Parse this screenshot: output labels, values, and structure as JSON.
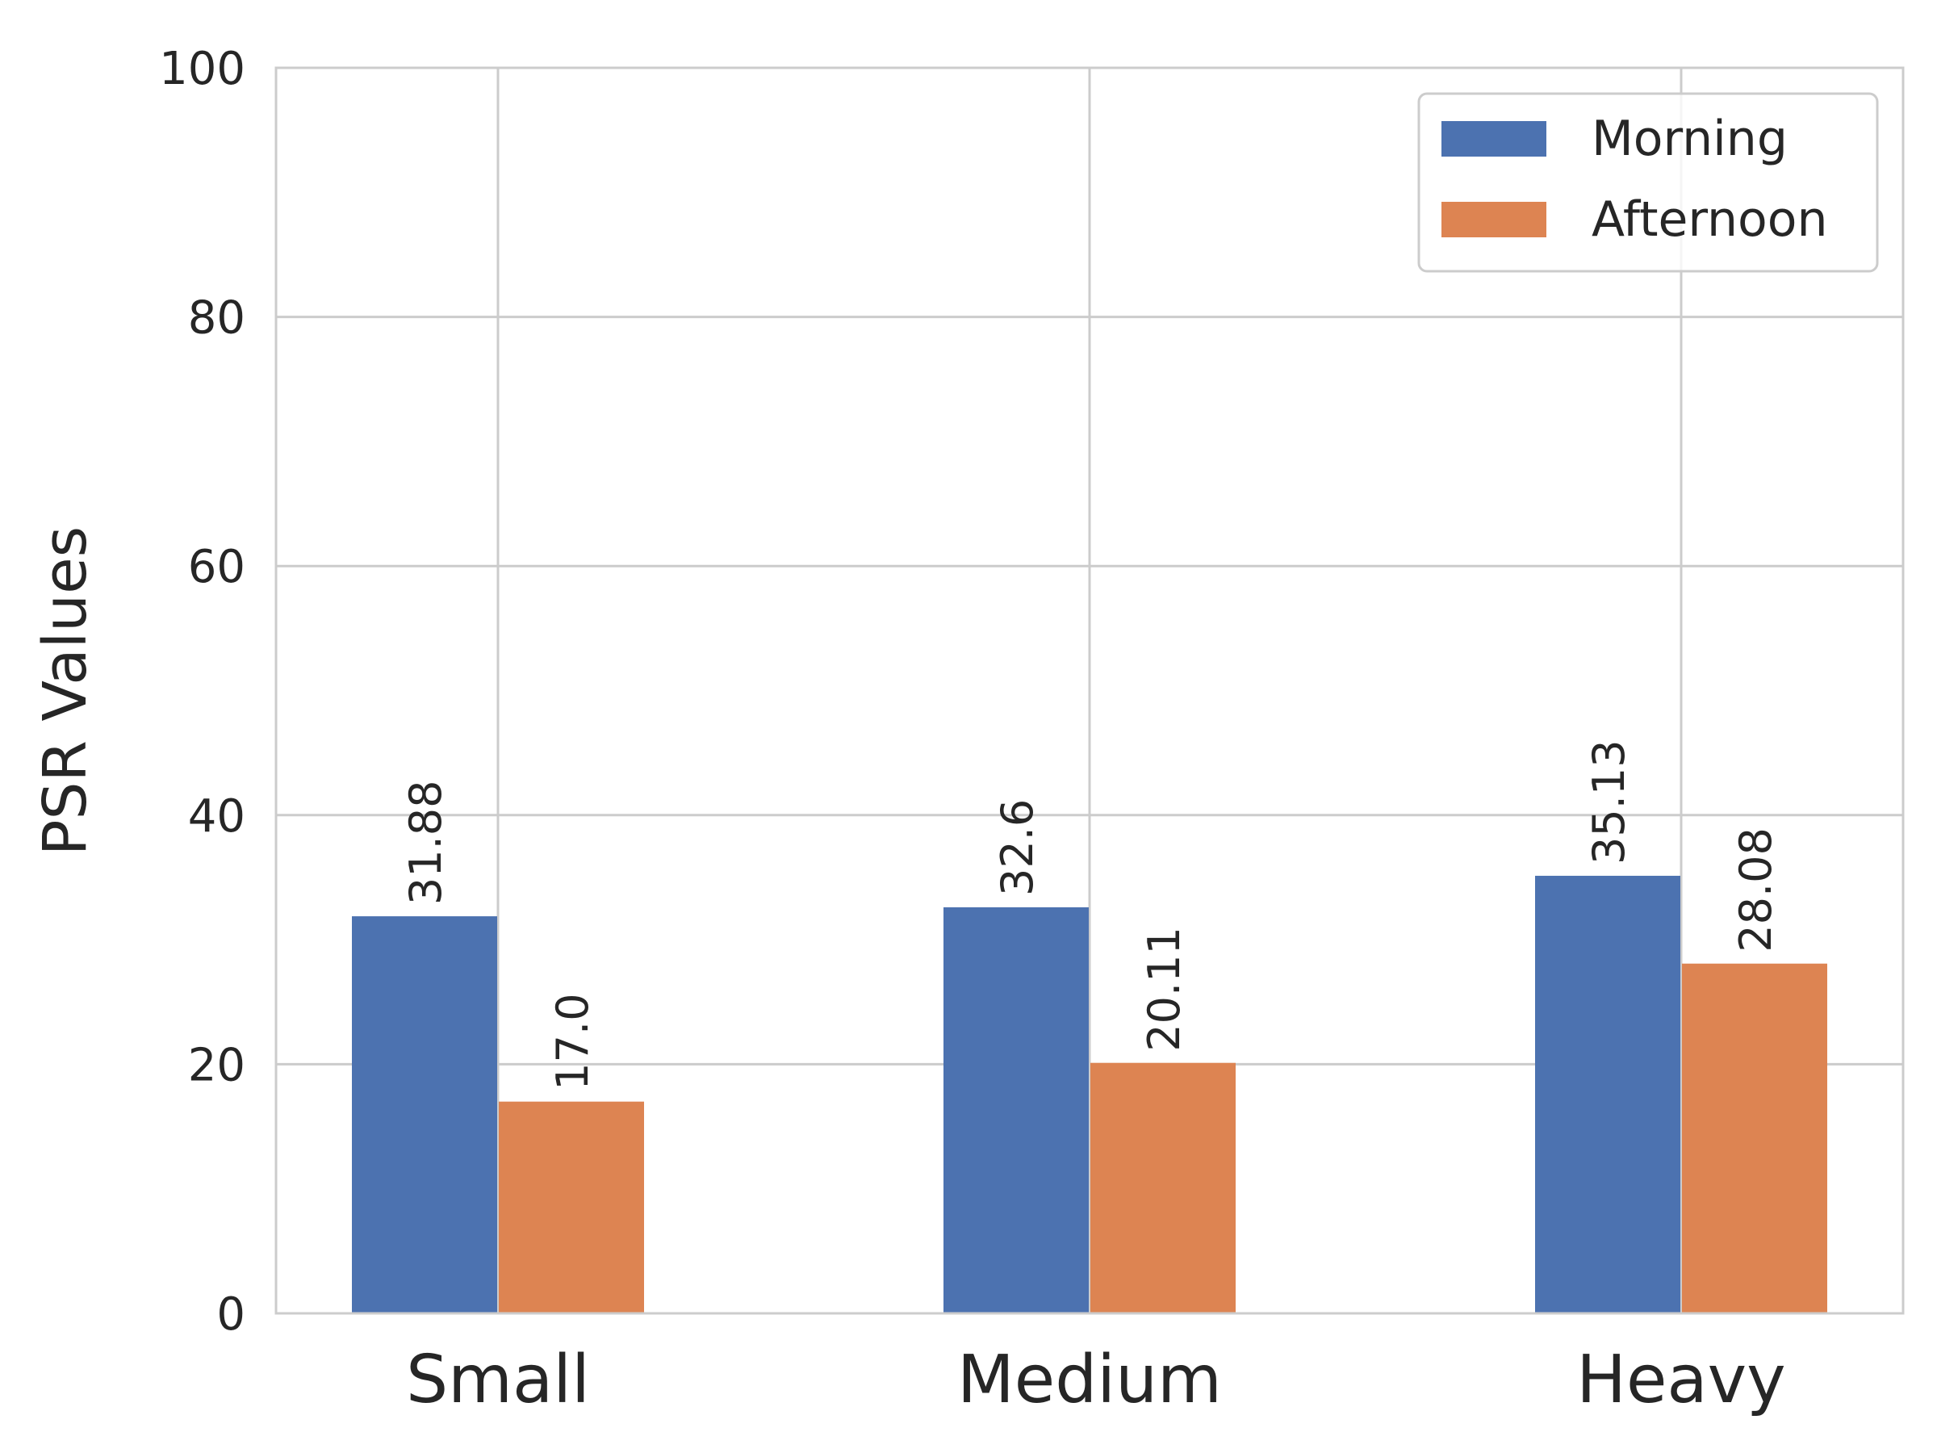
{
  "chart_data": {
    "type": "bar",
    "categories": [
      "Small",
      "Medium",
      "Heavy"
    ],
    "series": [
      {
        "name": "Morning",
        "values": [
          31.88,
          32.6,
          35.13
        ],
        "color": "#4c72b0"
      },
      {
        "name": "Afternoon",
        "values": [
          17.0,
          20.11,
          28.08
        ],
        "color": "#dd8452"
      }
    ],
    "data_labels": [
      [
        "31.88",
        "32.6",
        "35.13"
      ],
      [
        "17.0",
        "20.11",
        "28.08"
      ]
    ],
    "title": "",
    "xlabel": "",
    "ylabel": "PSR Values",
    "ylim": [
      0,
      100
    ],
    "yticks": [
      0,
      20,
      40,
      60,
      80,
      100
    ],
    "grid": true,
    "legend_position": "top-right",
    "colors": {
      "grid": "#cccccc",
      "spine": "#cccccc",
      "text": "#262626",
      "background": "#ffffff"
    }
  }
}
